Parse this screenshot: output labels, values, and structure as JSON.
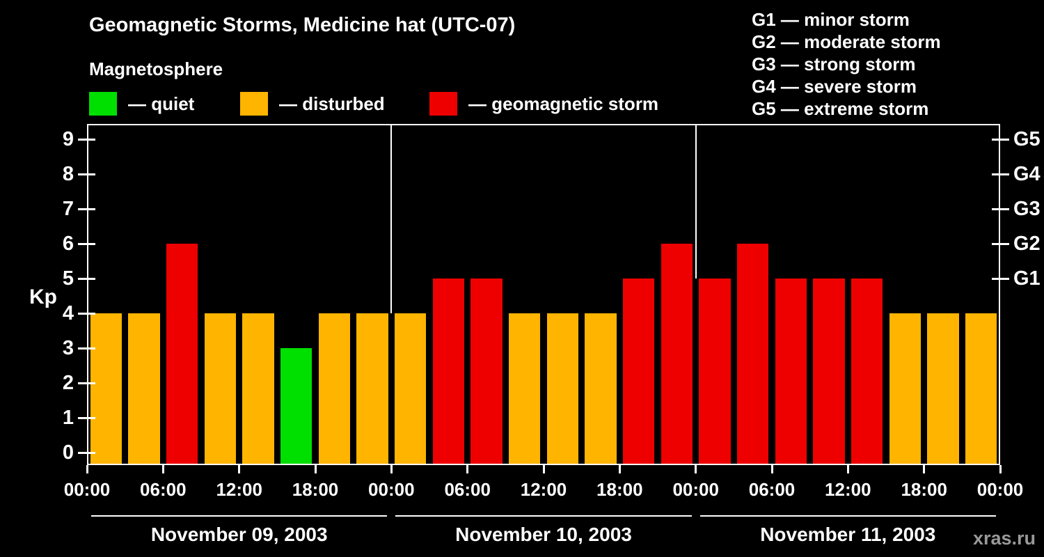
{
  "title": "Geomagnetic Storms, Medicine hat (UTC-07)",
  "subtitle": "Magnetosphere",
  "watermark": "xras.ru",
  "colors": {
    "background": "#000000",
    "text": "#ffffff",
    "quiet": "#00e000",
    "disturbed": "#ffb400",
    "storm": "#ee0000",
    "watermark_text": "#999999"
  },
  "legend": {
    "items": [
      {
        "key": "quiet",
        "label": "— quiet"
      },
      {
        "key": "disturbed",
        "label": "— disturbed"
      },
      {
        "key": "storm",
        "label": "— geomagnetic storm"
      }
    ]
  },
  "g_scale_legend": [
    "G1 — minor storm",
    "G2 — moderate storm",
    "G3 — strong storm",
    "G4 — severe storm",
    "G5 — extreme storm"
  ],
  "chart_data": {
    "type": "bar",
    "title": "Geomagnetic Storms, Medicine hat (UTC-07)",
    "ylabel": "Kp",
    "ylim": [
      0,
      9
    ],
    "yticks": [
      0,
      1,
      2,
      3,
      4,
      5,
      6,
      7,
      8,
      9
    ],
    "interval_hours": 3,
    "grid": false,
    "legend_position": "top-left",
    "right_axis_ticks": [
      {
        "kp": 5,
        "label": "G1"
      },
      {
        "kp": 6,
        "label": "G2"
      },
      {
        "kp": 7,
        "label": "G3"
      },
      {
        "kp": 8,
        "label": "G4"
      },
      {
        "kp": 9,
        "label": "G5"
      }
    ],
    "x_tick_labels": [
      "00:00",
      "06:00",
      "12:00",
      "18:00",
      "00:00",
      "06:00",
      "12:00",
      "18:00",
      "00:00",
      "06:00",
      "12:00",
      "18:00",
      "00:00"
    ],
    "color_rule": {
      "quiet_max_kp": 3,
      "storm_min_kp": 5
    },
    "days": [
      {
        "label": "November 09, 2003",
        "kp": [
          4,
          4,
          6,
          4,
          4,
          3,
          4,
          4
        ]
      },
      {
        "label": "November 10, 2003",
        "kp": [
          4,
          5,
          5,
          4,
          4,
          4,
          5,
          6
        ]
      },
      {
        "label": "November 11, 2003",
        "kp": [
          5,
          6,
          5,
          5,
          5,
          4,
          4,
          4
        ]
      }
    ]
  }
}
